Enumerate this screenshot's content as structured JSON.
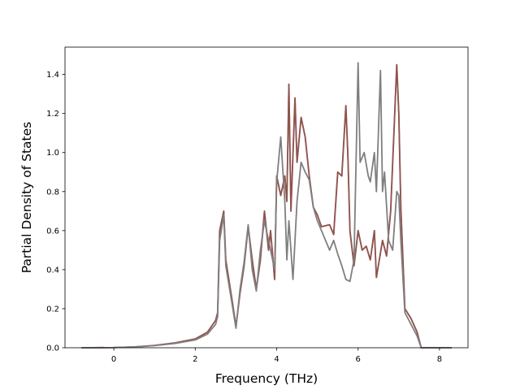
{
  "chart_data": {
    "type": "line",
    "xlabel": "Frequency (THz)",
    "ylabel": "Partial Density of States",
    "xlim": [
      -1.2,
      8.7
    ],
    "ylim": [
      0.0,
      1.54
    ],
    "xticks": [
      0,
      2,
      4,
      6,
      8
    ],
    "yticks": [
      0.0,
      0.2,
      0.4,
      0.6,
      0.8,
      1.0,
      1.2,
      1.4
    ],
    "xtick_labels": [
      "0",
      "2",
      "4",
      "6",
      "8"
    ],
    "ytick_labels": [
      "0.0",
      "0.2",
      "0.4",
      "0.6",
      "0.8",
      "1.0",
      "1.2",
      "1.4"
    ],
    "grid": false,
    "legend": "none",
    "series": [
      {
        "color": "#e377c2",
        "points": [
          [
            -0.8,
            0
          ],
          [
            0,
            0.001
          ],
          [
            0.5,
            0.004
          ],
          [
            1.0,
            0.012
          ],
          [
            1.5,
            0.025
          ],
          [
            2.0,
            0.045
          ],
          [
            2.3,
            0.08
          ],
          [
            2.5,
            0.14
          ],
          [
            2.55,
            0.18
          ],
          [
            2.6,
            0.6
          ],
          [
            2.7,
            0.7
          ],
          [
            2.75,
            0.45
          ],
          [
            2.9,
            0.25
          ],
          [
            3.0,
            0.11
          ],
          [
            3.1,
            0.28
          ],
          [
            3.2,
            0.42
          ],
          [
            3.3,
            0.62
          ],
          [
            3.4,
            0.45
          ],
          [
            3.5,
            0.3
          ],
          [
            3.6,
            0.45
          ],
          [
            3.7,
            0.7
          ],
          [
            3.8,
            0.5
          ],
          [
            3.85,
            0.6
          ],
          [
            3.95,
            0.35
          ],
          [
            4.0,
            0.88
          ],
          [
            4.1,
            0.78
          ],
          [
            4.2,
            0.88
          ],
          [
            4.25,
            0.75
          ],
          [
            4.3,
            1.35
          ],
          [
            4.35,
            0.7
          ],
          [
            4.45,
            1.28
          ],
          [
            4.5,
            0.95
          ],
          [
            4.6,
            1.18
          ],
          [
            4.7,
            1.08
          ],
          [
            4.8,
            0.88
          ],
          [
            4.9,
            0.72
          ],
          [
            5.0,
            0.68
          ],
          [
            5.1,
            0.62
          ],
          [
            5.3,
            0.63
          ],
          [
            5.4,
            0.58
          ],
          [
            5.5,
            0.9
          ],
          [
            5.6,
            0.88
          ],
          [
            5.7,
            1.24
          ],
          [
            5.75,
            0.98
          ],
          [
            5.8,
            0.6
          ],
          [
            5.9,
            0.42
          ],
          [
            6.0,
            0.6
          ],
          [
            6.1,
            0.5
          ],
          [
            6.2,
            0.52
          ],
          [
            6.3,
            0.45
          ],
          [
            6.4,
            0.6
          ],
          [
            6.45,
            0.36
          ],
          [
            6.6,
            0.55
          ],
          [
            6.7,
            0.47
          ],
          [
            6.8,
            0.7
          ],
          [
            6.95,
            1.45
          ],
          [
            7.0,
            1.2
          ],
          [
            7.05,
            0.72
          ],
          [
            7.15,
            0.2
          ],
          [
            7.3,
            0.15
          ],
          [
            7.45,
            0.08
          ],
          [
            7.55,
            0.0
          ],
          [
            8.3,
            0.0
          ]
        ]
      },
      {
        "color": "#8c564b",
        "points": [
          [
            -0.8,
            0
          ],
          [
            0,
            0.001
          ],
          [
            0.5,
            0.004
          ],
          [
            1.0,
            0.012
          ],
          [
            1.5,
            0.025
          ],
          [
            2.0,
            0.045
          ],
          [
            2.3,
            0.08
          ],
          [
            2.5,
            0.14
          ],
          [
            2.55,
            0.18
          ],
          [
            2.6,
            0.6
          ],
          [
            2.7,
            0.7
          ],
          [
            2.75,
            0.45
          ],
          [
            2.9,
            0.25
          ],
          [
            3.0,
            0.11
          ],
          [
            3.1,
            0.28
          ],
          [
            3.2,
            0.42
          ],
          [
            3.3,
            0.62
          ],
          [
            3.4,
            0.45
          ],
          [
            3.5,
            0.3
          ],
          [
            3.6,
            0.45
          ],
          [
            3.7,
            0.7
          ],
          [
            3.8,
            0.5
          ],
          [
            3.85,
            0.6
          ],
          [
            3.95,
            0.35
          ],
          [
            4.0,
            0.88
          ],
          [
            4.1,
            0.78
          ],
          [
            4.2,
            0.88
          ],
          [
            4.25,
            0.75
          ],
          [
            4.3,
            1.35
          ],
          [
            4.35,
            0.7
          ],
          [
            4.45,
            1.28
          ],
          [
            4.5,
            0.95
          ],
          [
            4.6,
            1.18
          ],
          [
            4.7,
            1.08
          ],
          [
            4.8,
            0.88
          ],
          [
            4.9,
            0.72
          ],
          [
            5.0,
            0.68
          ],
          [
            5.1,
            0.62
          ],
          [
            5.3,
            0.63
          ],
          [
            5.4,
            0.58
          ],
          [
            5.5,
            0.9
          ],
          [
            5.6,
            0.88
          ],
          [
            5.7,
            1.24
          ],
          [
            5.75,
            0.98
          ],
          [
            5.8,
            0.6
          ],
          [
            5.9,
            0.42
          ],
          [
            6.0,
            0.6
          ],
          [
            6.1,
            0.5
          ],
          [
            6.2,
            0.52
          ],
          [
            6.3,
            0.45
          ],
          [
            6.4,
            0.6
          ],
          [
            6.45,
            0.36
          ],
          [
            6.6,
            0.55
          ],
          [
            6.7,
            0.47
          ],
          [
            6.8,
            0.7
          ],
          [
            6.95,
            1.45
          ],
          [
            7.0,
            1.2
          ],
          [
            7.05,
            0.72
          ],
          [
            7.15,
            0.2
          ],
          [
            7.3,
            0.15
          ],
          [
            7.45,
            0.08
          ],
          [
            7.55,
            0.0
          ],
          [
            8.3,
            0.0
          ]
        ]
      },
      {
        "color": "#7f7f7f",
        "points": [
          [
            -0.8,
            0
          ],
          [
            0,
            0.001
          ],
          [
            0.5,
            0.004
          ],
          [
            1.0,
            0.011
          ],
          [
            1.5,
            0.022
          ],
          [
            2.0,
            0.04
          ],
          [
            2.3,
            0.07
          ],
          [
            2.5,
            0.12
          ],
          [
            2.55,
            0.16
          ],
          [
            2.6,
            0.55
          ],
          [
            2.7,
            0.68
          ],
          [
            2.75,
            0.42
          ],
          [
            2.9,
            0.23
          ],
          [
            3.0,
            0.1
          ],
          [
            3.1,
            0.3
          ],
          [
            3.2,
            0.44
          ],
          [
            3.3,
            0.63
          ],
          [
            3.4,
            0.4
          ],
          [
            3.5,
            0.29
          ],
          [
            3.6,
            0.5
          ],
          [
            3.7,
            0.65
          ],
          [
            3.8,
            0.55
          ],
          [
            3.85,
            0.5
          ],
          [
            3.95,
            0.4
          ],
          [
            4.0,
            0.85
          ],
          [
            4.1,
            1.08
          ],
          [
            4.2,
            0.75
          ],
          [
            4.25,
            0.45
          ],
          [
            4.3,
            0.65
          ],
          [
            4.4,
            0.35
          ],
          [
            4.5,
            0.75
          ],
          [
            4.6,
            0.95
          ],
          [
            4.7,
            0.9
          ],
          [
            4.8,
            0.86
          ],
          [
            4.9,
            0.72
          ],
          [
            5.0,
            0.65
          ],
          [
            5.1,
            0.6
          ],
          [
            5.3,
            0.5
          ],
          [
            5.4,
            0.55
          ],
          [
            5.5,
            0.48
          ],
          [
            5.6,
            0.42
          ],
          [
            5.7,
            0.35
          ],
          [
            5.8,
            0.34
          ],
          [
            5.9,
            0.45
          ],
          [
            6.0,
            1.46
          ],
          [
            6.05,
            0.95
          ],
          [
            6.15,
            1.0
          ],
          [
            6.25,
            0.88
          ],
          [
            6.3,
            0.85
          ],
          [
            6.4,
            1.0
          ],
          [
            6.45,
            0.8
          ],
          [
            6.55,
            1.42
          ],
          [
            6.6,
            0.8
          ],
          [
            6.65,
            0.9
          ],
          [
            6.75,
            0.55
          ],
          [
            6.85,
            0.5
          ],
          [
            6.95,
            0.8
          ],
          [
            7.0,
            0.78
          ],
          [
            7.05,
            0.55
          ],
          [
            7.15,
            0.18
          ],
          [
            7.3,
            0.12
          ],
          [
            7.45,
            0.06
          ],
          [
            7.55,
            0.0
          ],
          [
            8.3,
            0.0
          ]
        ]
      }
    ]
  }
}
